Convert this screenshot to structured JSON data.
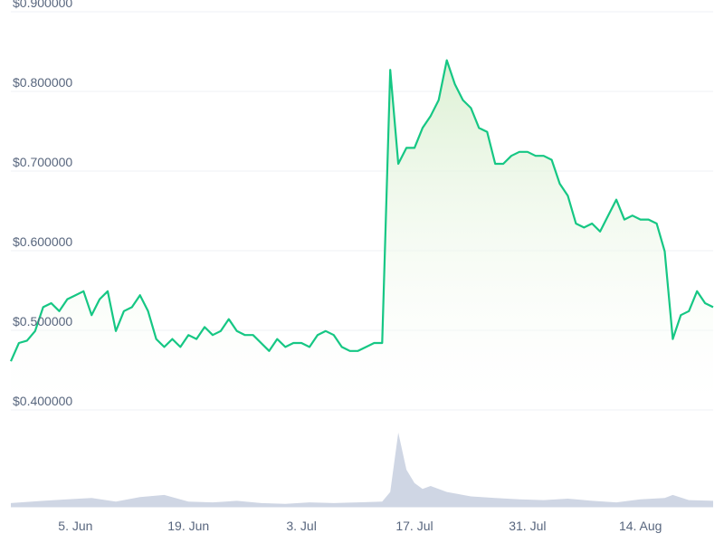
{
  "chart_data": {
    "type": "line",
    "title": "",
    "xlabel": "",
    "ylabel": "",
    "y_ticks": [
      "$0.400000",
      "$0.500000",
      "$0.600000",
      "$0.700000",
      "$0.800000",
      "$0.900000"
    ],
    "y_tick_values": [
      0.4,
      0.5,
      0.6,
      0.7,
      0.8,
      0.9
    ],
    "ylim": [
      0.4,
      0.9
    ],
    "xlim": [
      "2023-05-28",
      "2023-08-23"
    ],
    "x_ticks": [
      "5. Jun",
      "19. Jun",
      "3. Jul",
      "17. Jul",
      "31. Jul",
      "14. Aug"
    ],
    "x_tick_dates": [
      "2023-06-05",
      "2023-06-19",
      "2023-07-03",
      "2023-07-17",
      "2023-07-31",
      "2023-08-14"
    ],
    "grid": true,
    "legend": "none",
    "colors": {
      "line": "#16c784",
      "fill_top": "#e3f4dc",
      "volume": "#cfd6e4",
      "grid": "#eff2f5",
      "label": "#58667e"
    },
    "series": [
      {
        "x": [
          "2023-05-28",
          "2023-05-29",
          "2023-05-30",
          "2023-05-31",
          "2023-06-01",
          "2023-06-02",
          "2023-06-03",
          "2023-06-04",
          "2023-06-05",
          "2023-06-06",
          "2023-06-07",
          "2023-06-08",
          "2023-06-09",
          "2023-06-10",
          "2023-06-11",
          "2023-06-12",
          "2023-06-13",
          "2023-06-14",
          "2023-06-15",
          "2023-06-16",
          "2023-06-17",
          "2023-06-18",
          "2023-06-19",
          "2023-06-20",
          "2023-06-21",
          "2023-06-22",
          "2023-06-23",
          "2023-06-24",
          "2023-06-25",
          "2023-06-26",
          "2023-06-27",
          "2023-06-28",
          "2023-06-29",
          "2023-06-30",
          "2023-07-01",
          "2023-07-02",
          "2023-07-03",
          "2023-07-04",
          "2023-07-05",
          "2023-07-06",
          "2023-07-07",
          "2023-07-08",
          "2023-07-09",
          "2023-07-10",
          "2023-07-11",
          "2023-07-12",
          "2023-07-13",
          "2023-07-14",
          "2023-07-15",
          "2023-07-16",
          "2023-07-17",
          "2023-07-18",
          "2023-07-19",
          "2023-07-20",
          "2023-07-21",
          "2023-07-22",
          "2023-07-23",
          "2023-07-24",
          "2023-07-25",
          "2023-07-26",
          "2023-07-27",
          "2023-07-28",
          "2023-07-29",
          "2023-07-30",
          "2023-07-31",
          "2023-08-01",
          "2023-08-02",
          "2023-08-03",
          "2023-08-04",
          "2023-08-05",
          "2023-08-06",
          "2023-08-07",
          "2023-08-08",
          "2023-08-09",
          "2023-08-10",
          "2023-08-11",
          "2023-08-12",
          "2023-08-13",
          "2023-08-14",
          "2023-08-15",
          "2023-08-16",
          "2023-08-17",
          "2023-08-18",
          "2023-08-19",
          "2023-08-20",
          "2023-08-21",
          "2023-08-22",
          "2023-08-23"
        ],
        "values": [
          0.452,
          0.475,
          0.478,
          0.49,
          0.52,
          0.525,
          0.515,
          0.53,
          0.535,
          0.54,
          0.51,
          0.53,
          0.54,
          0.49,
          0.515,
          0.52,
          0.535,
          0.515,
          0.48,
          0.47,
          0.48,
          0.47,
          0.485,
          0.48,
          0.495,
          0.485,
          0.49,
          0.505,
          0.49,
          0.485,
          0.485,
          0.475,
          0.465,
          0.48,
          0.47,
          0.475,
          0.475,
          0.47,
          0.485,
          0.49,
          0.485,
          0.47,
          0.465,
          0.465,
          0.47,
          0.475,
          0.475,
          0.818,
          0.7,
          0.72,
          0.72,
          0.745,
          0.76,
          0.78,
          0.83,
          0.8,
          0.78,
          0.77,
          0.745,
          0.74,
          0.7,
          0.7,
          0.71,
          0.715,
          0.715,
          0.71,
          0.71,
          0.705,
          0.675,
          0.66,
          0.625,
          0.62,
          0.625,
          0.615,
          0.635,
          0.655,
          0.63,
          0.635,
          0.63,
          0.63,
          0.625,
          0.59,
          0.48,
          0.51,
          0.515,
          0.54,
          0.525,
          0.52
        ]
      }
    ],
    "volume": {
      "x": [
        "2023-05-28",
        "2023-06-01",
        "2023-06-04",
        "2023-06-07",
        "2023-06-10",
        "2023-06-13",
        "2023-06-16",
        "2023-06-19",
        "2023-06-22",
        "2023-06-25",
        "2023-06-28",
        "2023-07-01",
        "2023-07-04",
        "2023-07-07",
        "2023-07-10",
        "2023-07-13",
        "2023-07-14",
        "2023-07-15",
        "2023-07-16",
        "2023-07-17",
        "2023-07-18",
        "2023-07-19",
        "2023-07-21",
        "2023-07-24",
        "2023-07-27",
        "2023-07-30",
        "2023-08-02",
        "2023-08-05",
        "2023-08-08",
        "2023-08-11",
        "2023-08-14",
        "2023-08-17",
        "2023-08-18",
        "2023-08-20",
        "2023-08-23"
      ],
      "values": [
        0.05,
        0.08,
        0.1,
        0.12,
        0.07,
        0.13,
        0.16,
        0.07,
        0.06,
        0.08,
        0.05,
        0.04,
        0.06,
        0.05,
        0.06,
        0.07,
        0.2,
        1.0,
        0.5,
        0.32,
        0.24,
        0.28,
        0.2,
        0.14,
        0.12,
        0.1,
        0.09,
        0.11,
        0.08,
        0.06,
        0.1,
        0.12,
        0.16,
        0.09,
        0.08
      ]
    }
  }
}
